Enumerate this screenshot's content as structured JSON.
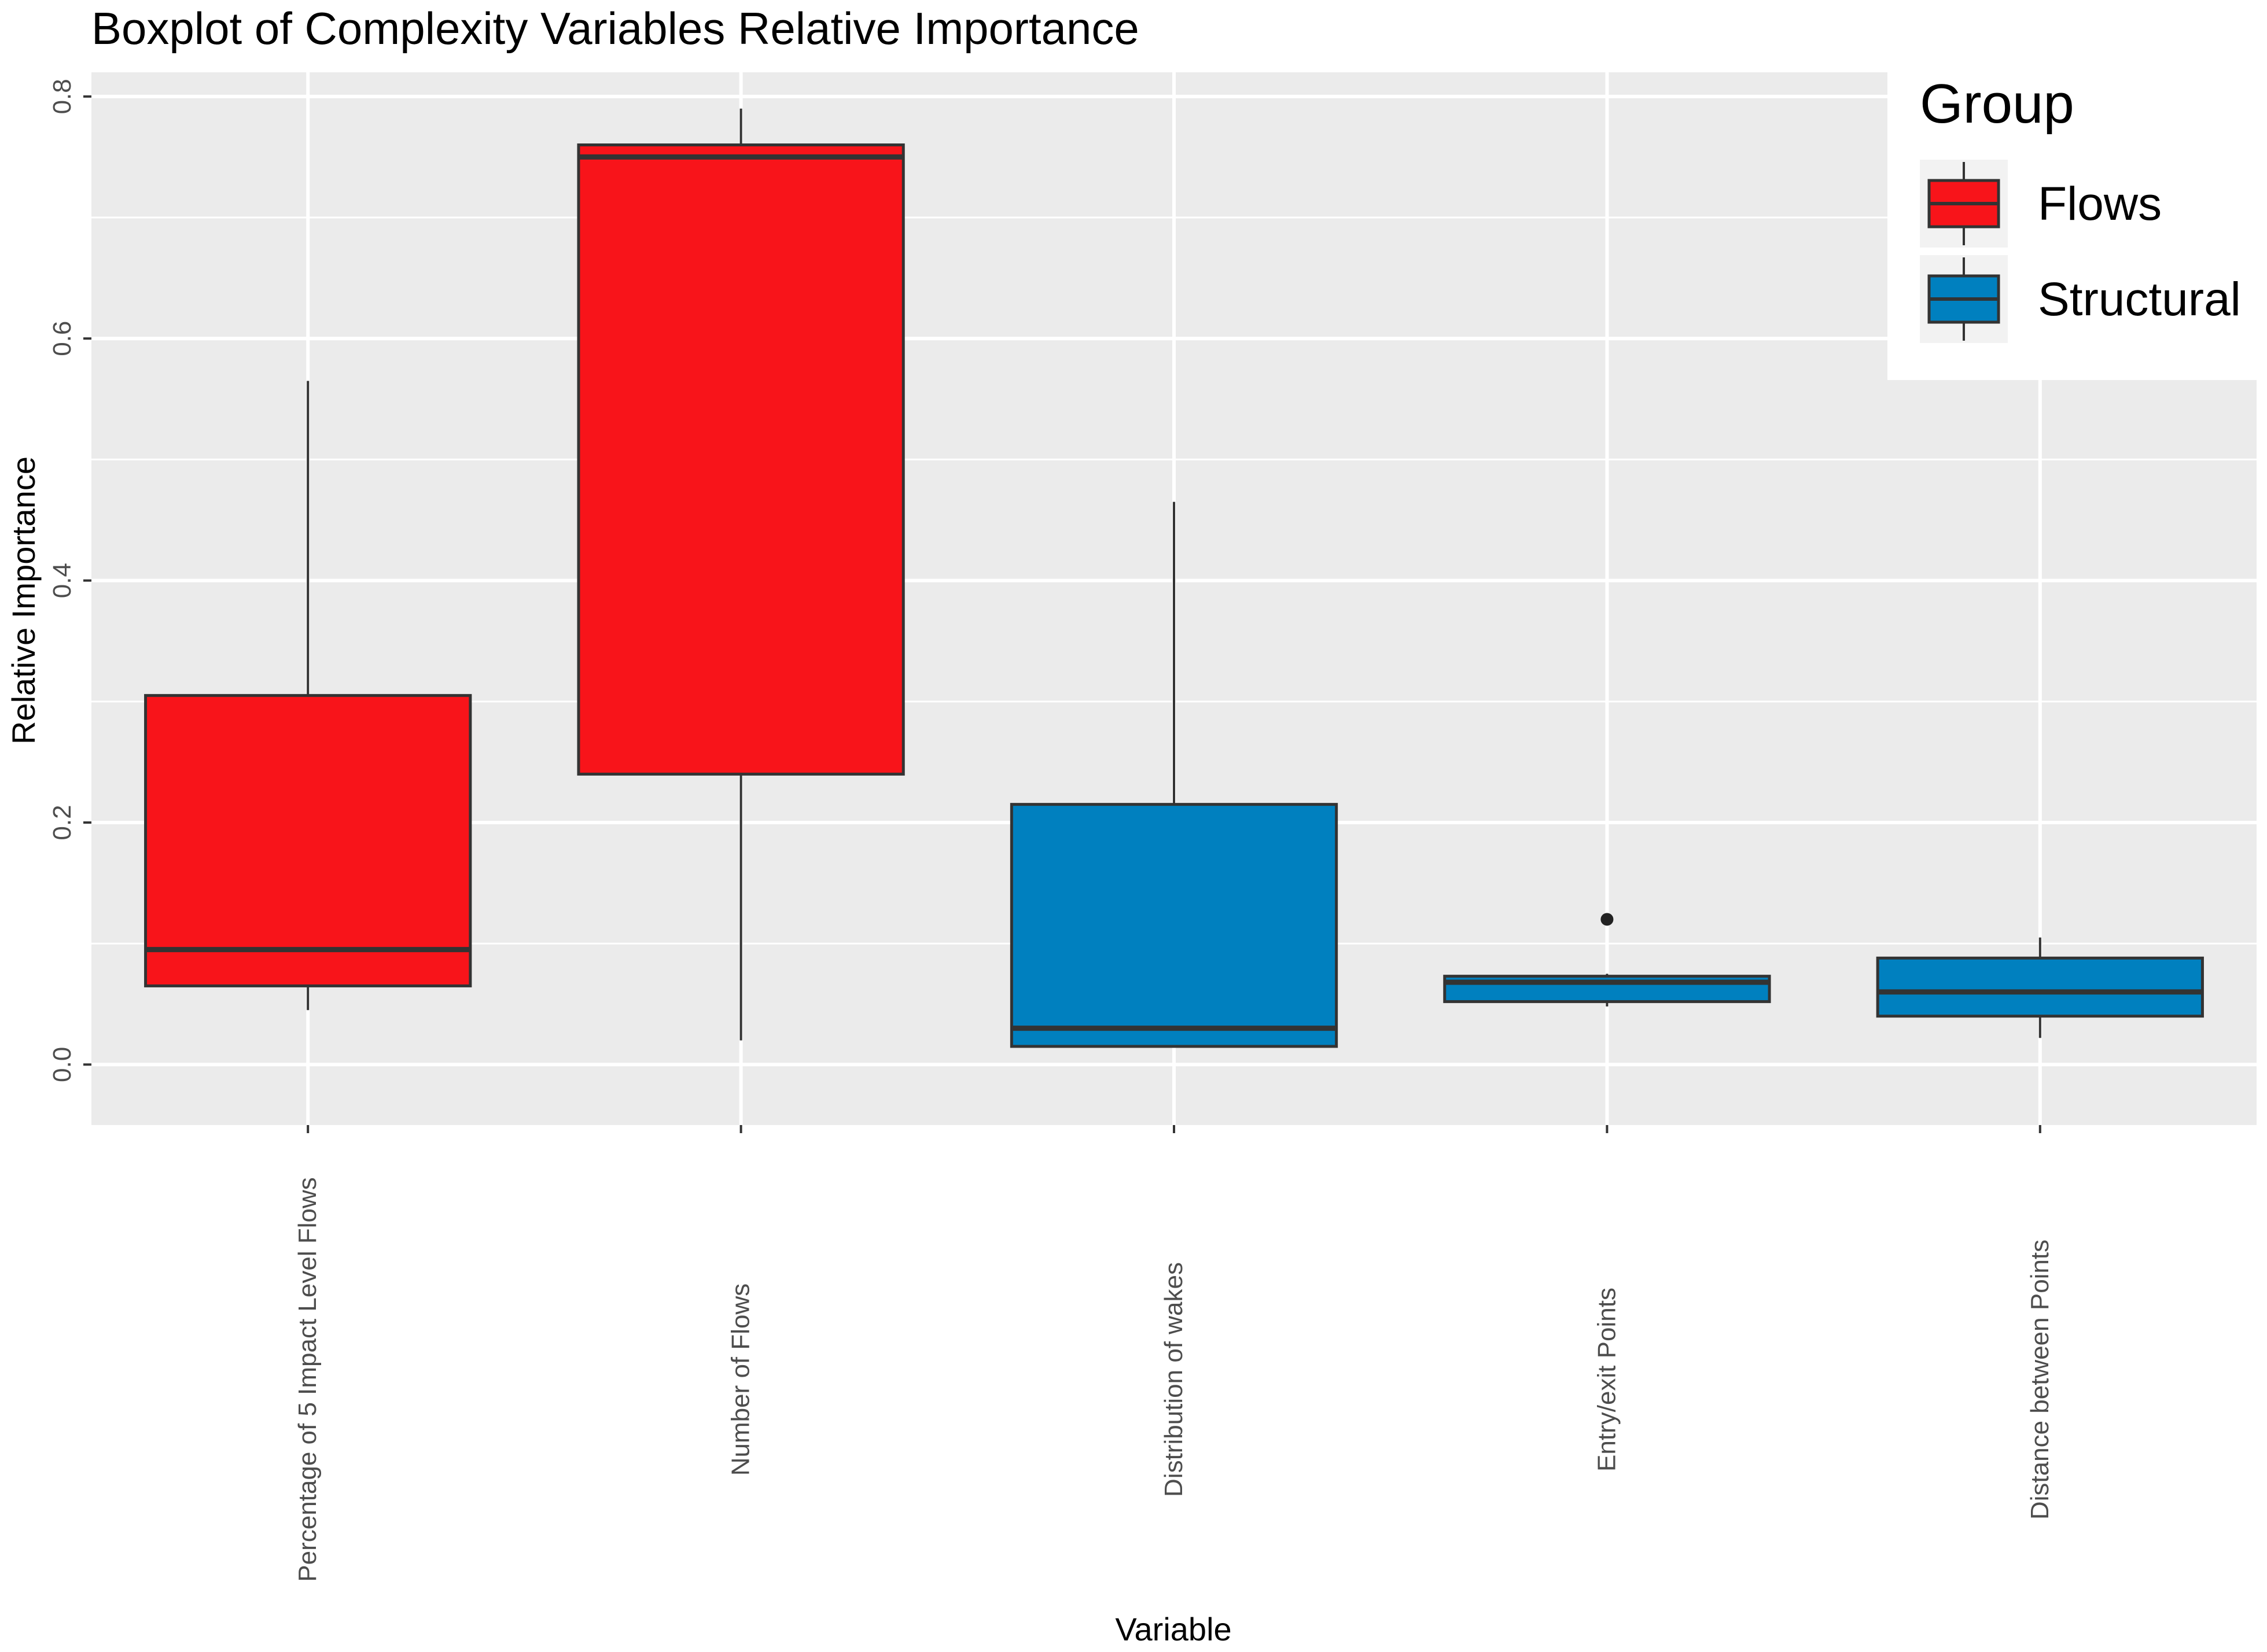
{
  "chart_data": {
    "type": "boxplot",
    "title": "Boxplot of Complexity Variables Relative Importance",
    "xlabel": "Variable",
    "ylabel": "Relative Importance",
    "ylim": [
      -0.05,
      0.82
    ],
    "yticks": [
      0.0,
      0.2,
      0.4,
      0.6,
      0.8
    ],
    "ytick_labels": [
      "0.0",
      "0.2",
      "0.4",
      "0.6",
      "0.8"
    ],
    "grid": true,
    "legend": {
      "title": "Group",
      "position": "top-right",
      "entries": [
        {
          "label": "Flows",
          "color": "#f8141a"
        },
        {
          "label": "Structural",
          "color": "#0080bf"
        }
      ]
    },
    "categories": [
      "Percentage of 5 Impact Level Flows",
      "Number of Flows",
      "Distribution of wakes",
      "Entry/exit Points",
      "Distance between Points"
    ],
    "boxes": [
      {
        "category": "Percentage of 5 Impact Level Flows",
        "group": "Flows",
        "min": 0.045,
        "q1": 0.065,
        "median": 0.095,
        "q3": 0.305,
        "max": 0.565,
        "outliers": []
      },
      {
        "category": "Number of Flows",
        "group": "Flows",
        "min": 0.02,
        "q1": 0.24,
        "median": 0.75,
        "q3": 0.76,
        "max": 0.79,
        "outliers": []
      },
      {
        "category": "Distribution of wakes",
        "group": "Structural",
        "min": 0.015,
        "q1": 0.015,
        "median": 0.03,
        "q3": 0.215,
        "max": 0.465,
        "outliers": []
      },
      {
        "category": "Entry/exit Points",
        "group": "Structural",
        "min": 0.048,
        "q1": 0.052,
        "median": 0.068,
        "q3": 0.073,
        "max": 0.075,
        "outliers": [
          0.12
        ]
      },
      {
        "category": "Distance between Points",
        "group": "Structural",
        "min": 0.022,
        "q1": 0.04,
        "median": 0.06,
        "q3": 0.088,
        "max": 0.105,
        "outliers": []
      }
    ]
  },
  "colors": {
    "panel_bg": "#ebebeb",
    "grid_major": "#ffffff",
    "box_outline": "#333333",
    "flows": "#f8141a",
    "structural": "#0080bf"
  }
}
